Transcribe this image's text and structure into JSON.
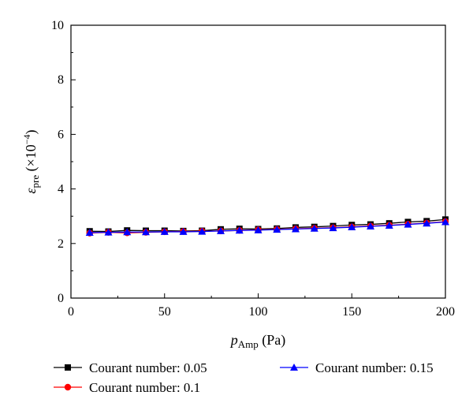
{
  "chart_data": {
    "type": "line",
    "title": "",
    "xlabel": {
      "main": "p",
      "sub": "Amp",
      "unit": " (Pa)"
    },
    "ylabel": {
      "main": "ε",
      "sub": "pre",
      "unit": " (×10",
      "exp": "−4",
      "close": ")"
    },
    "xlim": [
      0,
      200
    ],
    "ylim": [
      0,
      10
    ],
    "xticks": [
      0,
      50,
      100,
      150,
      200
    ],
    "yticks": [
      0,
      2,
      4,
      6,
      8,
      10
    ],
    "grid": false,
    "legend_position": "bottom",
    "x": [
      10,
      20,
      30,
      40,
      50,
      60,
      70,
      80,
      90,
      100,
      110,
      120,
      130,
      140,
      150,
      160,
      170,
      180,
      190,
      200
    ],
    "series": [
      {
        "name": "Courant number: 0.05",
        "color": "#000000",
        "marker": "square",
        "values": [
          2.45,
          2.44,
          2.48,
          2.47,
          2.47,
          2.46,
          2.47,
          2.52,
          2.54,
          2.53,
          2.55,
          2.59,
          2.61,
          2.64,
          2.68,
          2.7,
          2.74,
          2.79,
          2.82,
          2.88
        ]
      },
      {
        "name": "Courant number: 0.1",
        "color": "#ff0000",
        "marker": "circle",
        "values": [
          2.38,
          2.41,
          2.39,
          2.41,
          2.43,
          2.44,
          2.45,
          2.46,
          2.48,
          2.5,
          2.52,
          2.54,
          2.56,
          2.58,
          2.61,
          2.64,
          2.67,
          2.71,
          2.75,
          2.8
        ]
      },
      {
        "name": "Courant number: 0.15",
        "color": "#0000ff",
        "marker": "triangle",
        "values": [
          2.4,
          2.41,
          2.42,
          2.42,
          2.43,
          2.43,
          2.44,
          2.46,
          2.48,
          2.49,
          2.51,
          2.53,
          2.55,
          2.57,
          2.6,
          2.63,
          2.66,
          2.7,
          2.74,
          2.79
        ]
      }
    ]
  }
}
